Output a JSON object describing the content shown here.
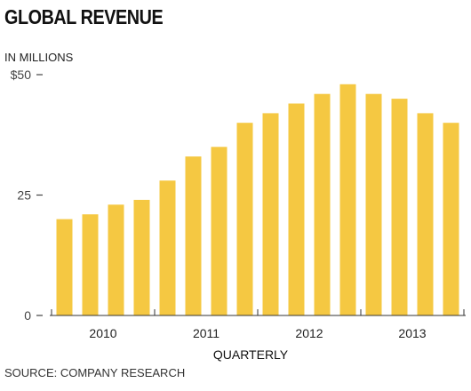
{
  "header": {
    "title": "GLOBAL REVENUE",
    "units": "IN MILLIONS"
  },
  "footer": {
    "source": "SOURCE: COMPANY RESEARCH"
  },
  "chart_data": {
    "type": "bar",
    "title": "GLOBAL REVENUE",
    "subtitle": "IN MILLIONS",
    "xlabel": "QUARTERLY",
    "ylabel": "",
    "ylim": [
      0,
      50
    ],
    "yticks": [
      0,
      25,
      50
    ],
    "ytick_labels": [
      "0",
      "25",
      "$50"
    ],
    "x_groups": [
      "2010",
      "2011",
      "2012",
      "2013"
    ],
    "categories": [
      "Q1 2010",
      "Q2 2010",
      "Q3 2010",
      "Q4 2010",
      "Q1 2011",
      "Q2 2011",
      "Q3 2011",
      "Q4 2011",
      "Q1 2012",
      "Q2 2012",
      "Q3 2012",
      "Q4 2012",
      "Q1 2013",
      "Q2 2013",
      "Q3 2013",
      "Q4 2013"
    ],
    "values": [
      20,
      21,
      23,
      24,
      28,
      33,
      35,
      40,
      42,
      44,
      46,
      48,
      46,
      45,
      42,
      40
    ],
    "bar_color": "#F5C842",
    "grid": false,
    "legend": "none"
  }
}
